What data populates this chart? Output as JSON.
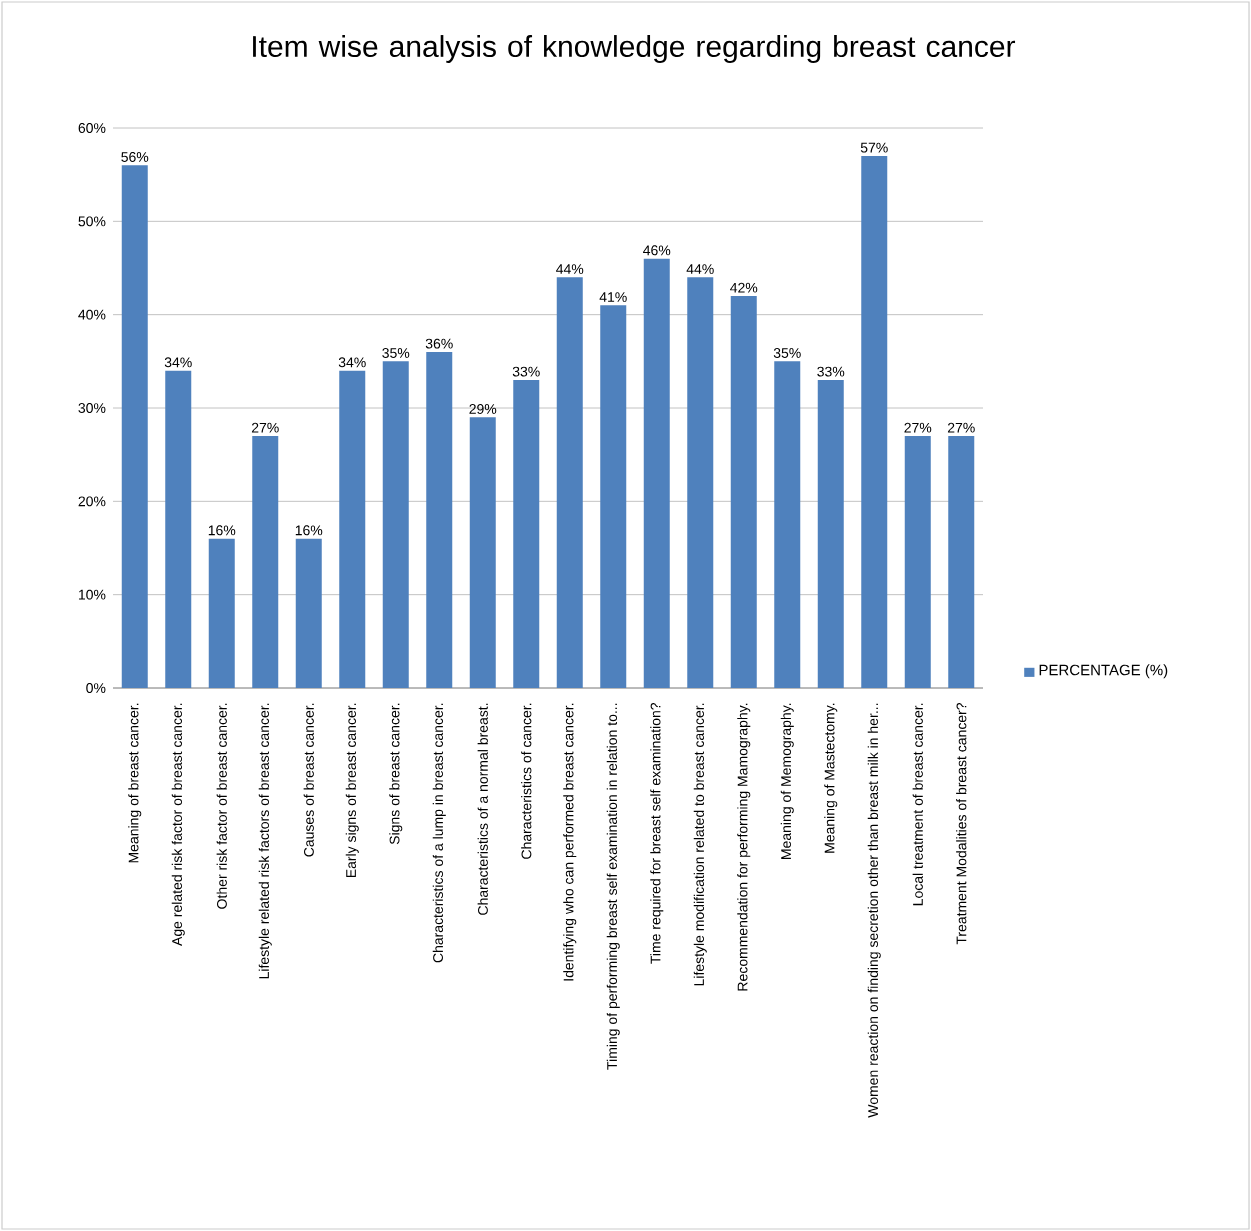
{
  "chart_data": {
    "type": "bar",
    "title": "Item wise analysis of knowledge regarding breast cancer",
    "categories": [
      "Meaning of breast cancer.",
      "Age related risk factor of breast cancer.",
      "Other risk factor of breast cancer.",
      "Lifestyle related risk factors of breast cancer.",
      "Causes of breast cancer.",
      "Early signs of breast cancer.",
      "Signs of breast cancer.",
      "Characteristics of a lump in breast cancer.",
      "Characteristics of a normal breast.",
      "Characteristics of cancer.",
      "Identifying who can performed breast cancer.",
      "Timing of performing breast self examination in relation to...",
      "Time required for breast self examination?",
      "Lifestyle modification related to  breast cancer.",
      "Recommendation for performing Mamography.",
      "Meaning of Memography.",
      "Meaning of Mastectomy.",
      "Women reaction on finding secretion other than breast milk in her...",
      "Local treatment of breast cancer.",
      "Treatment Modalities of breast cancer?"
    ],
    "series": [
      {
        "name": "PERCENTAGE (%)",
        "color": "#4f81bd",
        "values": [
          56,
          34,
          16,
          27,
          16,
          34,
          35,
          36,
          29,
          33,
          44,
          41,
          46,
          44,
          42,
          35,
          33,
          57,
          27,
          27
        ],
        "value_labels": [
          "56%",
          "34%",
          "16%",
          "27%",
          "16%",
          "34%",
          "35%",
          "36%",
          "29%",
          "33%",
          "44%",
          "41%",
          "46%",
          "44%",
          "42%",
          "35%",
          "33%",
          "57%",
          "27%",
          "27%"
        ]
      }
    ],
    "ylim": [
      0,
      60
    ],
    "yticks": [
      {
        "value": 0,
        "label": "0%"
      },
      {
        "value": 10,
        "label": "10%"
      },
      {
        "value": 20,
        "label": "20%"
      },
      {
        "value": 30,
        "label": "30%"
      },
      {
        "value": 40,
        "label": "40%"
      },
      {
        "value": 50,
        "label": "50%"
      },
      {
        "value": 60,
        "label": "60%"
      }
    ],
    "grid": "y",
    "legend": "right"
  }
}
